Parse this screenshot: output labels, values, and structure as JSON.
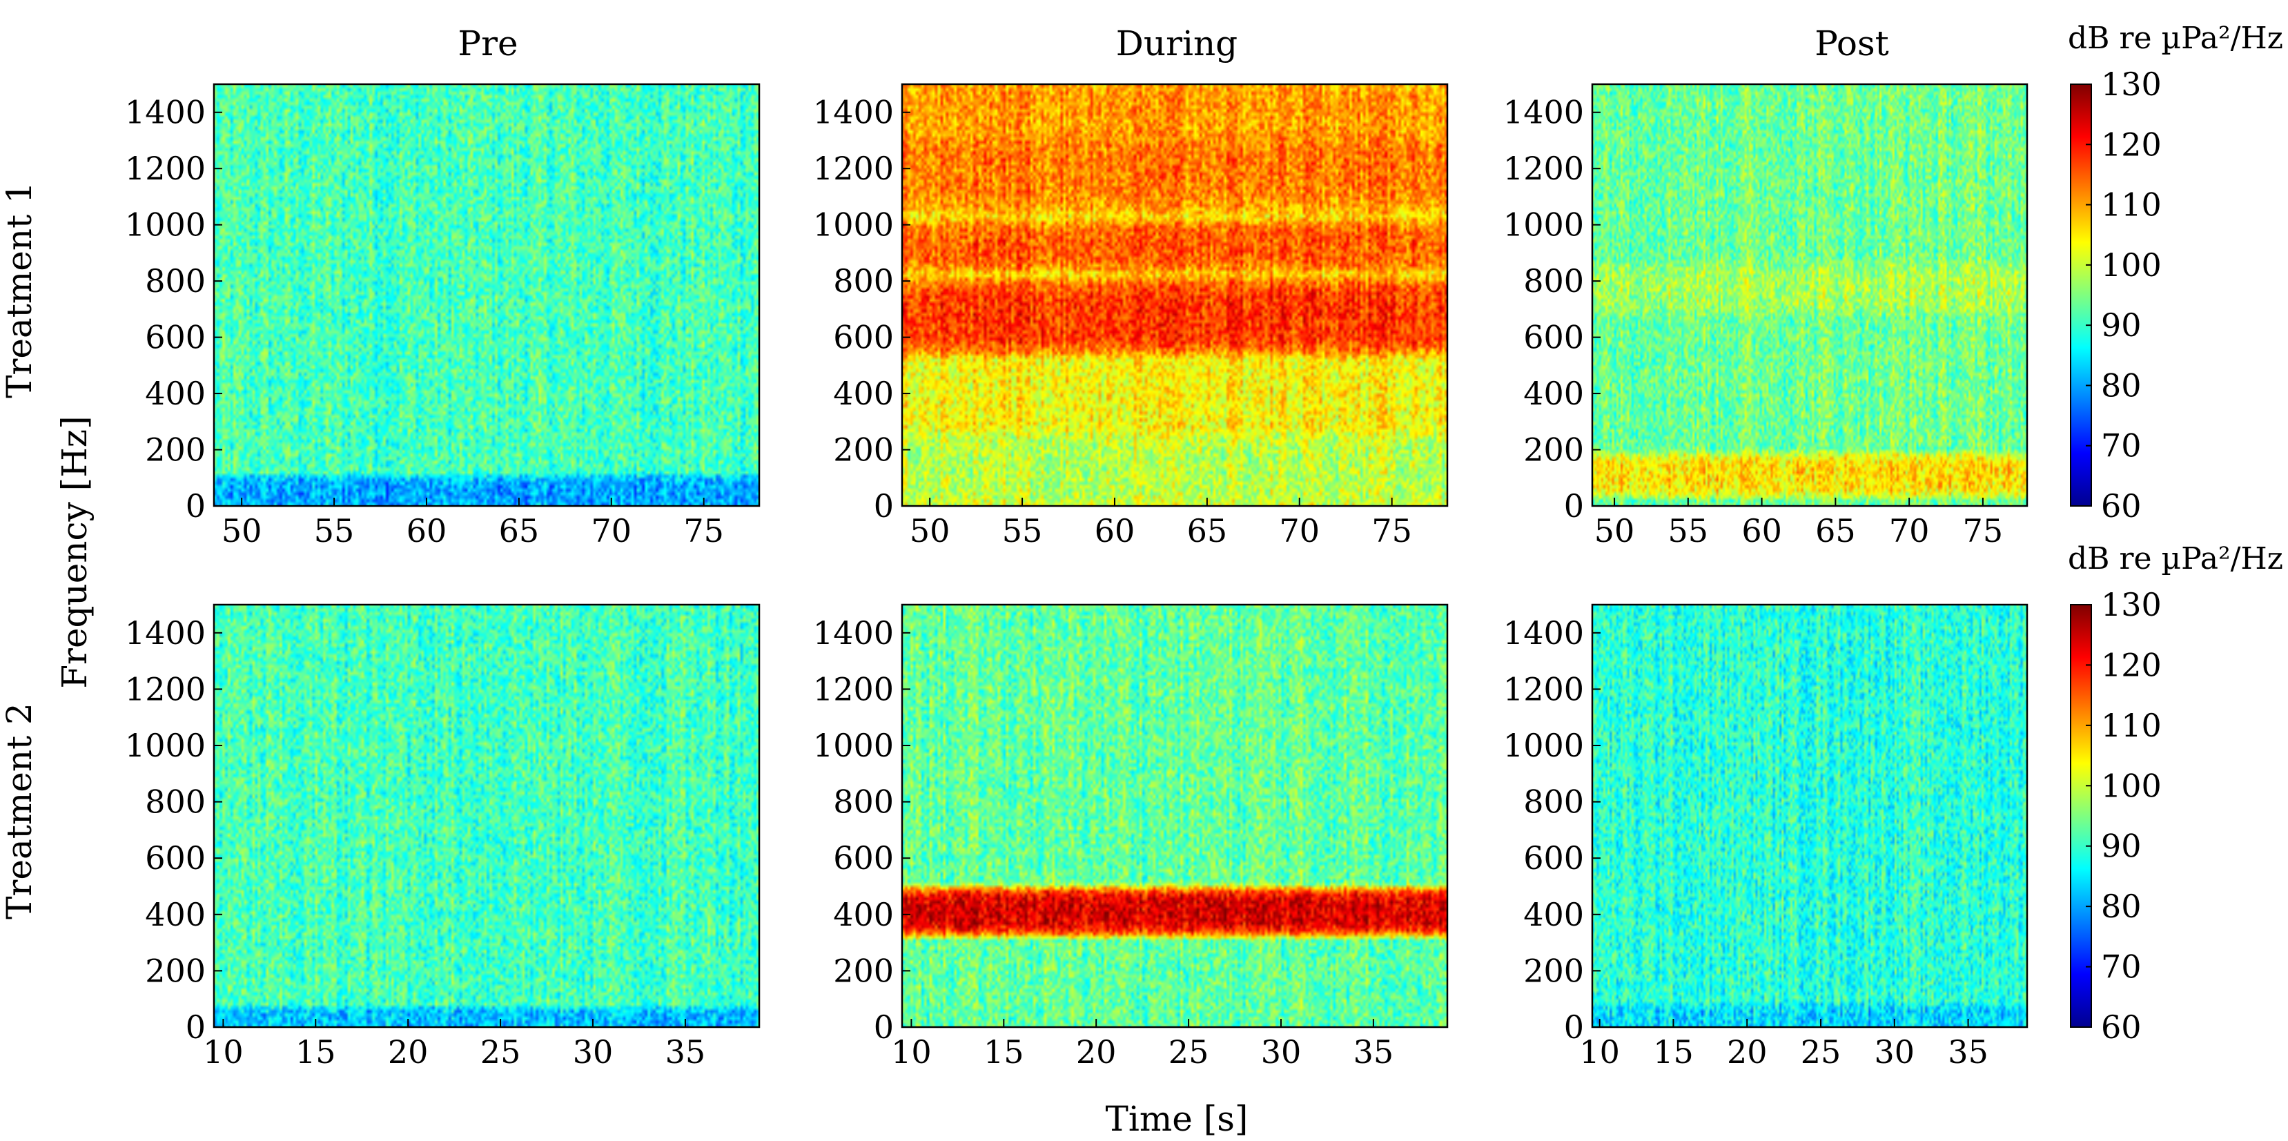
{
  "chart_data": {
    "type": "heatmap",
    "columns": [
      "Pre",
      "During",
      "Post"
    ],
    "rows": [
      "Treatment 1",
      "Treatment 2"
    ],
    "ylabel": "Frequency [Hz]",
    "xlabel": "Time [s]",
    "ylim": [
      0,
      1500
    ],
    "yticks": [
      0,
      200,
      400,
      600,
      800,
      1000,
      1200,
      1400
    ],
    "colorbar": {
      "label": "dB re µPa²/Hz",
      "range": [
        60,
        130
      ],
      "ticks": [
        60,
        70,
        80,
        90,
        100,
        110,
        120,
        130
      ],
      "colormap": "jet"
    },
    "panels": [
      {
        "row": "Treatment 1",
        "col": "Pre",
        "xlim": [
          48.5,
          78
        ],
        "xticks": [
          50,
          55,
          60,
          65,
          70,
          75
        ],
        "background_db": 91,
        "bands": [
          {
            "f": [
              0,
              90
            ],
            "db": 80
          }
        ]
      },
      {
        "row": "Treatment 1",
        "col": "During",
        "xlim": [
          48.5,
          78
        ],
        "xticks": [
          50,
          55,
          60,
          65,
          70,
          75
        ],
        "background_db": 104,
        "bands": [
          {
            "f": [
              550,
              800
            ],
            "db": 118
          },
          {
            "f": [
              850,
              1000
            ],
            "db": 115
          },
          {
            "f": [
              1050,
              1350
            ],
            "db": 113
          },
          {
            "f": [
              1350,
              1500
            ],
            "db": 111
          },
          {
            "f": [
              0,
              250
            ],
            "db": 99
          }
        ]
      },
      {
        "row": "Treatment 1",
        "col": "Post",
        "xlim": [
          48.5,
          78
        ],
        "xticks": [
          50,
          55,
          60,
          65,
          70,
          75
        ],
        "background_db": 94,
        "bands": [
          {
            "f": [
              50,
              170
            ],
            "db": 106
          },
          {
            "f": [
              700,
              850
            ],
            "db": 98
          }
        ]
      },
      {
        "row": "Treatment 2",
        "col": "Pre",
        "xlim": [
          9.5,
          39
        ],
        "xticks": [
          10,
          15,
          20,
          25,
          30,
          35
        ],
        "background_db": 91,
        "bands": [
          {
            "f": [
              0,
              50
            ],
            "db": 82
          }
        ]
      },
      {
        "row": "Treatment 2",
        "col": "During",
        "xlim": [
          9.5,
          39
        ],
        "xticks": [
          10,
          15,
          20,
          25,
          30,
          35
        ],
        "background_db": 93,
        "bands": [
          {
            "f": [
              340,
              480
            ],
            "db": 124
          }
        ]
      },
      {
        "row": "Treatment 2",
        "col": "Post",
        "xlim": [
          9.5,
          39
        ],
        "xticks": [
          10,
          15,
          20,
          25,
          30,
          35
        ],
        "background_db": 89,
        "bands": [
          {
            "f": [
              0,
              60
            ],
            "db": 84
          }
        ]
      }
    ]
  }
}
